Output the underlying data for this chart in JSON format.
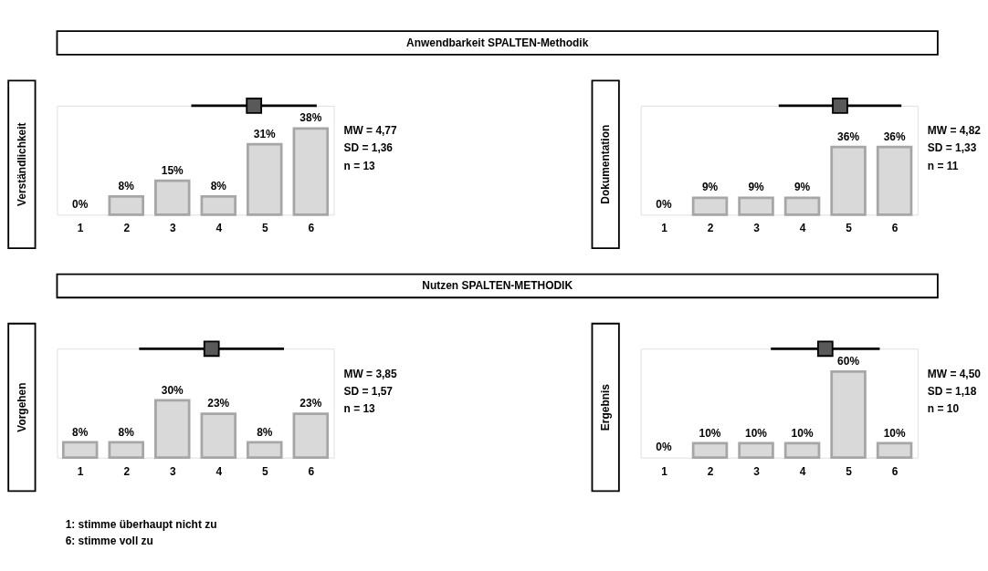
{
  "chart_data": [
    {
      "type": "other",
      "title": "Anwendbarkeit SPALTEN-Methodik"
    },
    {
      "type": "bar",
      "ylabel": "Verständlichkeit",
      "x": [
        1,
        2,
        3,
        4,
        5,
        6
      ],
      "xlim": [
        0.5,
        6.5
      ],
      "xticks": [
        1,
        2,
        3,
        4,
        5,
        6
      ],
      "tick_labels": "x",
      "series": [
        {
          "type": "bar",
          "color": "#d9d9d9",
          "values": [
            0,
            8,
            15,
            8,
            31,
            38
          ],
          "value_labels": [
            "0%",
            "8%",
            "15%",
            "8%",
            "31%",
            "38%"
          ]
        },
        {
          "type": "scatter",
          "marker": "square",
          "color": "#595959",
          "x": [
            4.77
          ],
          "values": [
            48
          ],
          "xerrors": [
            1.36
          ]
        }
      ],
      "annotations": [
        "MW = 4,77",
        "SD = 1,36",
        "n = 13"
      ]
    },
    {
      "type": "bar",
      "ylabel": "Dokumentation",
      "x": [
        1,
        2,
        3,
        4,
        5,
        6
      ],
      "xlim": [
        0.5,
        6.5
      ],
      "xticks": [
        1,
        2,
        3,
        4,
        5,
        6
      ],
      "tick_labels": "x",
      "series": [
        {
          "type": "bar",
          "color": "#d9d9d9",
          "values": [
            0,
            9,
            9,
            9,
            36,
            36
          ],
          "value_labels": [
            "0%",
            "9%",
            "9%",
            "9%",
            "36%",
            "36%"
          ]
        },
        {
          "type": "scatter",
          "marker": "square",
          "color": "#595959",
          "x": [
            4.82
          ],
          "values": [
            58
          ],
          "xerrors": [
            1.33
          ]
        }
      ],
      "annotations": [
        "MW = 4,82",
        "SD = 1,33",
        "n = 11"
      ]
    },
    {
      "type": "other",
      "title": "Nutzen  SPALTEN-METHODIK"
    },
    {
      "type": "bar",
      "ylabel": "Vorgehen",
      "x": [
        1,
        2,
        3,
        4,
        5,
        6
      ],
      "xlim": [
        0.5,
        6.5
      ],
      "xticks": [
        1,
        2,
        3,
        4,
        5,
        6
      ],
      "tick_labels": "x",
      "series": [
        {
          "type": "bar",
          "color": "#d9d9d9",
          "values": [
            8,
            8,
            30,
            23,
            8,
            23
          ],
          "value_labels": [
            "8%",
            "8%",
            "30%",
            "23%",
            "8%",
            "23%"
          ]
        },
        {
          "type": "scatter",
          "marker": "square",
          "color": "#595959",
          "x": [
            3.85
          ],
          "values": [
            57
          ],
          "xerrors": [
            1.57
          ]
        }
      ],
      "annotations": [
        "MW = 3,85",
        "SD = 1,57",
        "n = 13"
      ]
    },
    {
      "type": "bar",
      "ylabel": "Ergebnis",
      "x": [
        1,
        2,
        3,
        4,
        5,
        6
      ],
      "xlim": [
        0.5,
        6.5
      ],
      "xticks": [
        1,
        2,
        3,
        4,
        5,
        6
      ],
      "tick_labels": "x",
      "series": [
        {
          "type": "bar",
          "color": "#d9d9d9",
          "values": [
            0,
            10,
            10,
            10,
            60,
            10
          ],
          "value_labels": [
            "0%",
            "10%",
            "10%",
            "10%",
            "60%",
            "10%"
          ]
        },
        {
          "type": "scatter",
          "marker": "square",
          "color": "#595959",
          "x": [
            4.5
          ],
          "values": [
            76
          ],
          "xerrors": [
            1.18
          ]
        }
      ],
      "annotations": [
        "MW = 4,50",
        "SD = 1,18",
        "n = 10"
      ]
    },
    {
      "type": "other",
      "annotations": [
        "1: stimme überhaupt nicht zu",
        "6: stimme voll zu"
      ]
    }
  ]
}
